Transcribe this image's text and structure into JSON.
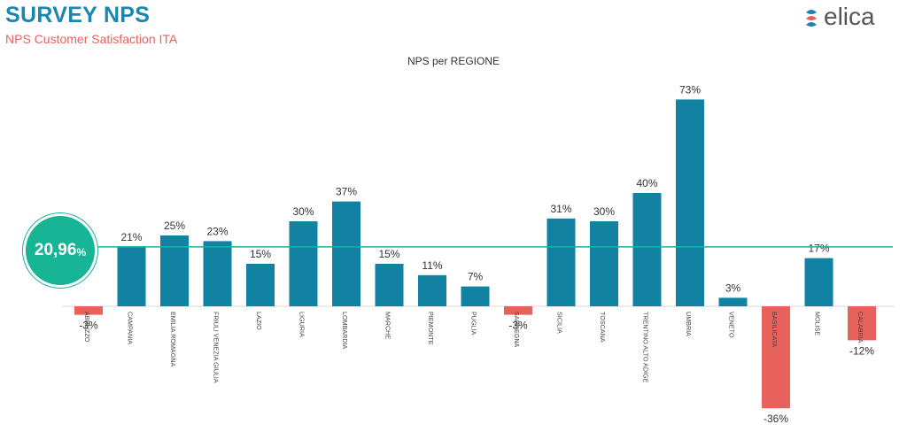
{
  "header": {
    "title": "SURVEY NPS",
    "subtitle": "NPS Customer Satisfaction ITA",
    "logo_text": "elica"
  },
  "average": {
    "value": "20,96",
    "unit": "%",
    "line_value": 20.96
  },
  "colors": {
    "positive": "#1282a2",
    "negative": "#e8625c",
    "average_line": "#17b495",
    "title": "#1a87b0"
  },
  "chart_data": {
    "type": "bar",
    "title": "NPS per REGIONE",
    "xlabel": "",
    "ylabel": "",
    "ylim": [
      -36,
      73
    ],
    "grid": false,
    "reference_line": 20.96,
    "categories": [
      "ABRUZZO",
      "CAMPANIA",
      "EMILIA ROMAGNA",
      "FRIULI VENEZIA GIULIA",
      "LAZIO",
      "LIGURIA",
      "LOMBARDIA",
      "MARCHE",
      "PIEMONTE",
      "PUGLIA",
      "SARDEGNA",
      "SICILIA",
      "TOSCANA",
      "TRENTINO ALTO ADIGE",
      "UMBRIA",
      "VENETO",
      "BASILICATA",
      "MOLISE",
      "CALABRIA"
    ],
    "values": [
      -3,
      21,
      25,
      23,
      15,
      30,
      37,
      15,
      11,
      7,
      -3,
      31,
      30,
      40,
      73,
      3,
      -36,
      17,
      -12
    ],
    "labels": [
      "-3%",
      "21%",
      "25%",
      "23%",
      "15%",
      "30%",
      "37%",
      "15%",
      "11%",
      "7%",
      "-3%",
      "31%",
      "30%",
      "40%",
      "73%",
      "3%",
      "-36%",
      "17%",
      "-12%"
    ]
  }
}
